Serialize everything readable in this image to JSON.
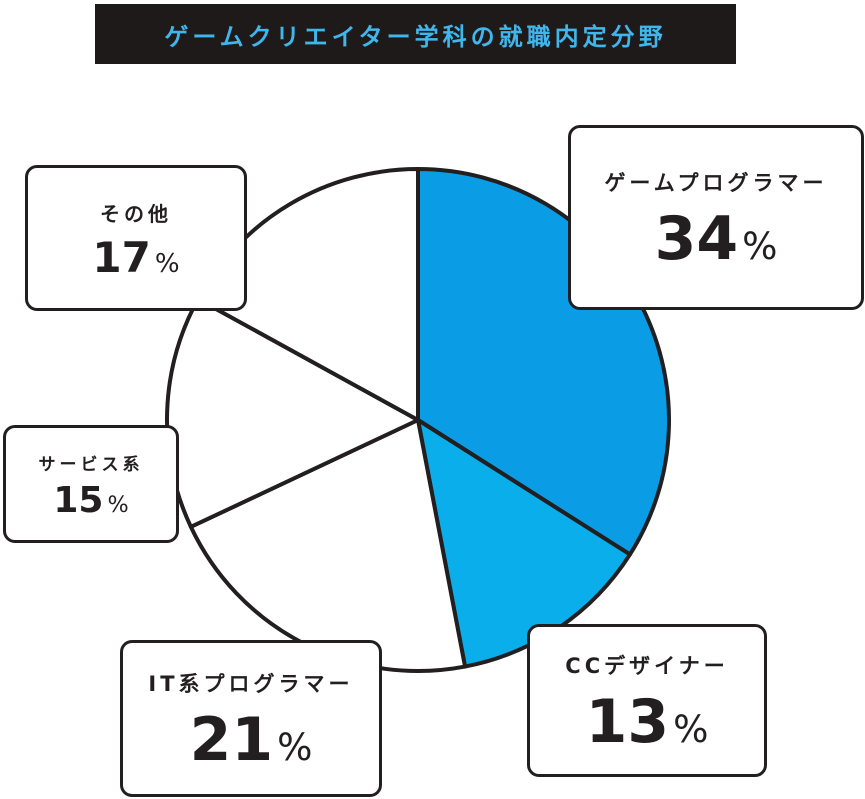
{
  "header": {
    "title": "ゲームクリエイター学科の就職内定分野"
  },
  "chart_data": {
    "type": "pie",
    "title": "ゲームクリエイター学科の就職内定分野",
    "unit": "%",
    "slices": [
      {
        "name": "ゲームプログラマー",
        "value": 34,
        "color": "#0a9de6"
      },
      {
        "name": "CCデザイナー",
        "value": 13,
        "color": "#0aaeea"
      },
      {
        "name": "IT系プログラマー",
        "value": 21,
        "color": "#ffffff"
      },
      {
        "name": "サービス系",
        "value": 15,
        "color": "#ffffff"
      },
      {
        "name": "その他",
        "value": 17,
        "color": "#ffffff"
      }
    ],
    "stroke_color": "#231f20"
  }
}
